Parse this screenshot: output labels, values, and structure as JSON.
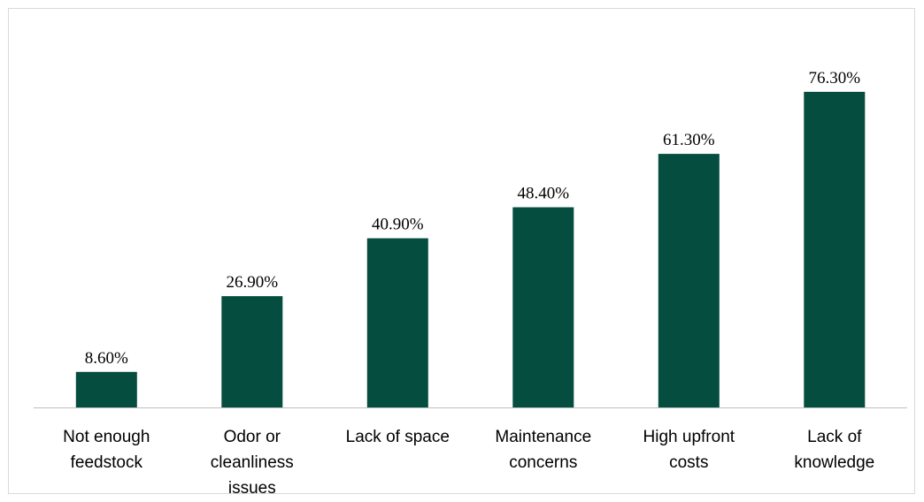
{
  "chart_data": {
    "type": "bar",
    "categories": [
      [
        "Not enough",
        "feedstock"
      ],
      [
        "Odor or",
        "cleanliness",
        "issues"
      ],
      [
        "Lack of space"
      ],
      [
        "Maintenance",
        "concerns"
      ],
      [
        "High upfront",
        "costs"
      ],
      [
        "Lack of",
        "knowledge"
      ]
    ],
    "values": [
      8.6,
      26.9,
      40.9,
      48.4,
      61.3,
      76.3
    ],
    "data_labels": [
      "8.60%",
      "26.90%",
      "40.90%",
      "48.40%",
      "61.30%",
      "76.30%"
    ],
    "title": "",
    "xlabel": "",
    "ylabel": "",
    "ylim": [
      0,
      100
    ],
    "bar_color": "#054d3f",
    "axis_color": "#bfbfbf",
    "grid": false,
    "legend": "none"
  }
}
